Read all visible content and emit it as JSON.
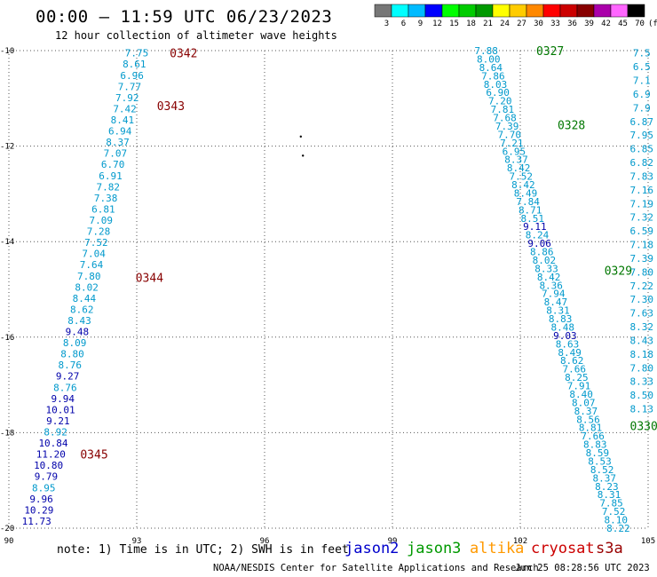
{
  "title": "00:00 – 11:59 UTC 06/23/2023",
  "subtitle": "12 hour collection of altimeter wave heights",
  "note": "note: 1) Time is in UTC; 2) SWH is in feet",
  "credit": "NOAA/NESDIS Center for Satellite Applications and Research",
  "generated": "Jun 25 08:28:56 UTC 2023",
  "missions": [
    {
      "name": "jason2",
      "color": "#0000cc"
    },
    {
      "name": "jason3",
      "color": "#009900"
    },
    {
      "name": "altika",
      "color": "#ff9900"
    },
    {
      "name": "cryosat",
      "color": "#cc0000"
    },
    {
      "name": "s3a",
      "color": "#990000"
    }
  ],
  "colors": {
    "label_light": "#0099cc",
    "label_dark": "#0000aa",
    "time_jason3": "#007700",
    "time_s3a": "#880000",
    "grid": "#555555"
  },
  "chart_data": {
    "type": "scatter",
    "xlim": [
      90,
      105
    ],
    "ylim": [
      -20,
      -10
    ],
    "xticks": [
      90,
      93,
      96,
      99,
      102,
      105
    ],
    "yticks": [
      -10,
      -12,
      -14,
      -16,
      -18,
      -20
    ],
    "grid": true,
    "legend": {
      "placement": "top-right",
      "units": "(ft)",
      "bins": [
        {
          "label": "3",
          "color": "#777777"
        },
        {
          "label": "6",
          "color": "#00ffff"
        },
        {
          "label": "9",
          "color": "#00bbff"
        },
        {
          "label": "12",
          "color": "#0000ff"
        },
        {
          "label": "15",
          "color": "#00ff00"
        },
        {
          "label": "18",
          "color": "#00cc00"
        },
        {
          "label": "21",
          "color": "#009900"
        },
        {
          "label": "24",
          "color": "#ffff00"
        },
        {
          "label": "27",
          "color": "#ffcc00"
        },
        {
          "label": "30",
          "color": "#ff8800"
        },
        {
          "label": "33",
          "color": "#ff0000"
        },
        {
          "label": "36",
          "color": "#cc0000"
        },
        {
          "label": "39",
          "color": "#880000"
        },
        {
          "label": "42",
          "color": "#aa00aa"
        },
        {
          "label": "45",
          "color": "#ff66ff"
        },
        {
          "label": "70",
          "color": "#000000"
        }
      ]
    },
    "tracks": [
      {
        "mission": "s3a",
        "x_start": 93.0,
        "y_start": -10.05,
        "x_end": 90.65,
        "y_end": -19.85,
        "values": [
          "7.75",
          "8.61",
          "6.96",
          "7.77",
          "7.92",
          "7.42",
          "8.41",
          "6.94",
          "8.37",
          "7.07",
          "6.70",
          "6.91",
          "7.82",
          "7.38",
          "6.81",
          "7.09",
          "7.28",
          "7.52",
          "7.04",
          "7.64",
          "7.80",
          "8.02",
          "8.44",
          "8.62",
          "8.43",
          "9.48",
          "8.09",
          "8.80",
          "8.76",
          "9.27",
          "8.76",
          "9.94",
          "10.01",
          "9.21",
          "8.92",
          "10.84",
          "11.20",
          "10.80",
          "9.79",
          "8.95",
          "9.96",
          "10.29",
          "11.73"
        ],
        "dark": [
          25,
          29,
          31,
          32,
          33,
          35,
          36,
          37,
          38,
          40,
          41,
          42
        ],
        "times": [
          {
            "label": "0342",
            "x": 94.1,
            "y": -10.05
          },
          {
            "label": "0343",
            "x": 93.8,
            "y": -11.15
          },
          {
            "label": "0344",
            "x": 93.3,
            "y": -14.75
          },
          {
            "label": "0345",
            "x": 92.0,
            "y": -18.45
          }
        ]
      },
      {
        "mission": "jason3",
        "x_start": 101.2,
        "y_start": -10.0,
        "x_end": 104.3,
        "y_end": -20.0,
        "values": [
          "7.88",
          "8.00",
          "8.64",
          "7.86",
          "8.03",
          "6.90",
          "7.20",
          "7.81",
          "7.68",
          "7.39",
          "7.70",
          "7.21",
          "6.95",
          "8.37",
          "8.42",
          "7.52",
          "8.42",
          "8.49",
          "7.84",
          "8.71",
          "8.51",
          "9.11",
          "8.24",
          "9.06",
          "8.86",
          "8.02",
          "8.33",
          "8.42",
          "8.36",
          "7.94",
          "8.47",
          "8.31",
          "8.83",
          "8.48",
          "9.03",
          "8.63",
          "8.49",
          "8.62",
          "7.66",
          "8.25",
          "7.91",
          "8.40",
          "8.07",
          "8.37",
          "8.56",
          "8.81",
          "7.66",
          "8.83",
          "8.59",
          "8.53",
          "8.52",
          "8.37",
          "8.23",
          "8.31",
          "7.85",
          "7.52",
          "8.10",
          "8.22"
        ],
        "dark": [
          21,
          23,
          34
        ],
        "times": [
          {
            "label": "0327",
            "x": 102.7,
            "y": -10.0
          },
          {
            "label": "0328",
            "x": 103.2,
            "y": -11.55
          },
          {
            "label": "0329",
            "x": 104.3,
            "y": -14.6
          },
          {
            "label": "0330",
            "x": 104.9,
            "y": -17.85
          }
        ]
      },
      {
        "mission": "jason3",
        "x_start": 104.85,
        "y_start": -10.05,
        "x_end": 104.85,
        "y_end": -17.5,
        "values": [
          "7.5",
          "6.5",
          "7.1",
          "6.9",
          "7.9",
          "6.87",
          "7.95",
          "6.85",
          "6.82",
          "7.83",
          "7.16",
          "7.19",
          "7.32",
          "6.59",
          "7.18",
          "7.39",
          "7.80",
          "7.22",
          "7.30",
          "7.63",
          "8.32",
          "8.43",
          "8.18",
          "7.80",
          "8.33",
          "8.50",
          "8.13"
        ],
        "dark": [],
        "times": []
      }
    ],
    "points": [
      {
        "x": 96.85,
        "y": -11.8
      },
      {
        "x": 96.9,
        "y": -12.2
      }
    ]
  }
}
